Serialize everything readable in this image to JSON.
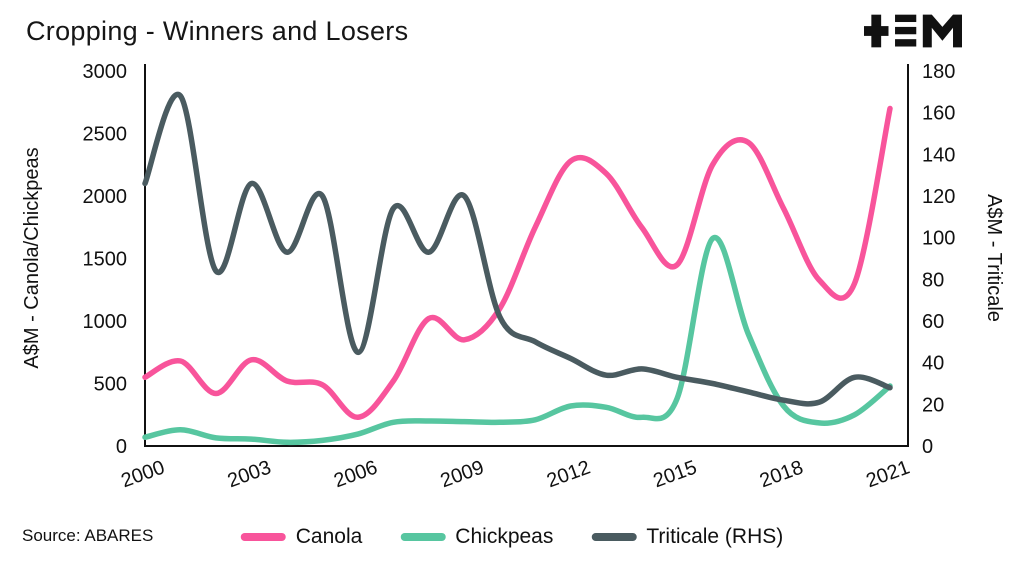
{
  "title": "Cropping - Winners and Losers",
  "source": "Source: ABARES",
  "logo": {
    "name": "tem-logo",
    "color": "#111111"
  },
  "chart_data": {
    "type": "line",
    "title": "Cropping - Winners and Losers",
    "x": [
      2000,
      2001,
      2002,
      2003,
      2004,
      2005,
      2006,
      2007,
      2008,
      2009,
      2010,
      2011,
      2012,
      2013,
      2014,
      2015,
      2016,
      2017,
      2018,
      2019,
      2020,
      2021
    ],
    "x_ticks": [
      2000,
      2003,
      2006,
      2009,
      2012,
      2015,
      2018,
      2021
    ],
    "left_axis": {
      "label": "A$M - Canola/Chickpeas",
      "min": 0,
      "max": 3000,
      "step": 500
    },
    "right_axis": {
      "label": "A$M - Triticale",
      "min": 0,
      "max": 180,
      "step": 20
    },
    "grid": false,
    "legend_position": "bottom",
    "series": [
      {
        "name": "Canola",
        "axis": "left",
        "color": "#f8549b",
        "values": [
          550,
          680,
          420,
          690,
          520,
          490,
          230,
          520,
          1020,
          850,
          1100,
          1750,
          2280,
          2180,
          1750,
          1450,
          2250,
          2430,
          1900,
          1330,
          1300,
          2700
        ]
      },
      {
        "name": "Chickpeas",
        "axis": "left",
        "color": "#57c6a0",
        "values": [
          70,
          130,
          65,
          55,
          30,
          45,
          95,
          190,
          200,
          195,
          190,
          210,
          320,
          310,
          230,
          380,
          1660,
          900,
          320,
          185,
          250,
          480
        ]
      },
      {
        "name": "Triticale (RHS)",
        "axis": "right",
        "color": "#4a5b60",
        "values": [
          126,
          168,
          84,
          126,
          93,
          120,
          45,
          114,
          93,
          120,
          62,
          50,
          42,
          34,
          37,
          33,
          30,
          26,
          22,
          21,
          33,
          28
        ]
      }
    ]
  }
}
